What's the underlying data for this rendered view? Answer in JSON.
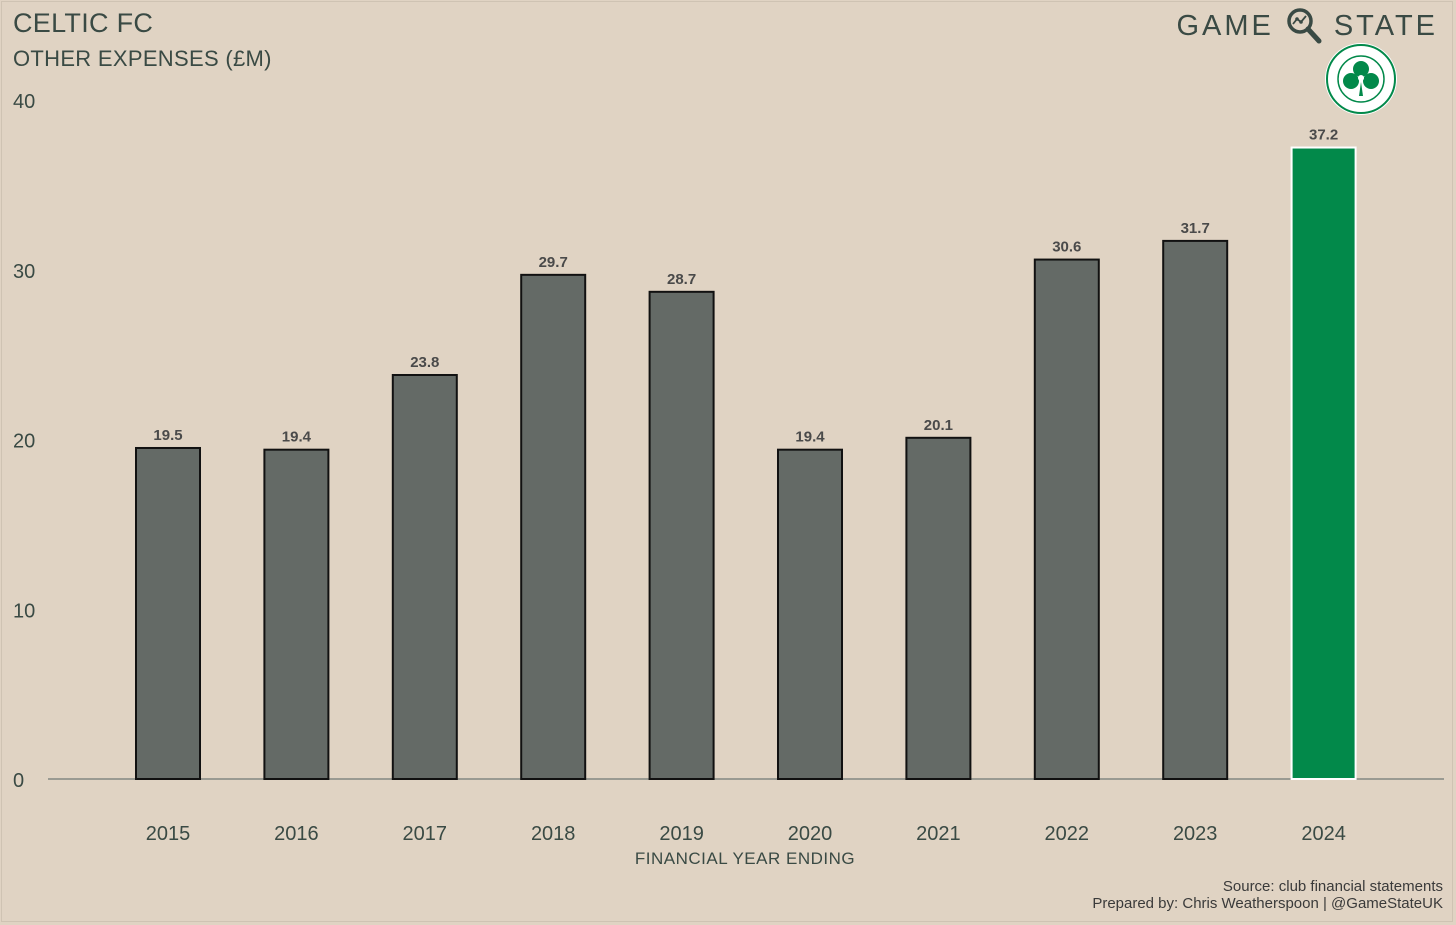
{
  "header": {
    "title": "CELTIC FC",
    "subtitle": "OTHER EXPENSES (£M)"
  },
  "brand": {
    "left_word": "GAME",
    "right_word": "STATE",
    "icon": "magnifier-icon",
    "crest_icon": "celtic-crest-icon"
  },
  "footer": {
    "source": "Source: club financial statements",
    "prepared_by": "Prepared by: Chris Weatherspoon | @GameStateUK"
  },
  "colors": {
    "background": "#e0d3c3",
    "bar": "#646a66",
    "highlight": "#02894a",
    "text": "#3a4a44"
  },
  "chart_data": {
    "type": "bar",
    "title": "CELTIC FC",
    "subtitle": "OTHER EXPENSES (£M)",
    "xlabel": "FINANCIAL YEAR ENDING",
    "ylabel": "",
    "categories": [
      "2015",
      "2016",
      "2017",
      "2018",
      "2019",
      "2020",
      "2021",
      "2022",
      "2023",
      "2024"
    ],
    "values": [
      19.5,
      19.4,
      23.8,
      29.7,
      28.7,
      19.4,
      20.1,
      30.6,
      31.7,
      37.2
    ],
    "value_labels": [
      "19.5",
      "19.4",
      "23.8",
      "29.7",
      "28.7",
      "19.4",
      "20.1",
      "30.6",
      "31.7",
      "37.2"
    ],
    "highlight_index": 9,
    "ylim": [
      0,
      40
    ],
    "yticks": [
      "0",
      "10",
      "20",
      "30",
      "40"
    ],
    "grid": false,
    "legend": "none"
  }
}
